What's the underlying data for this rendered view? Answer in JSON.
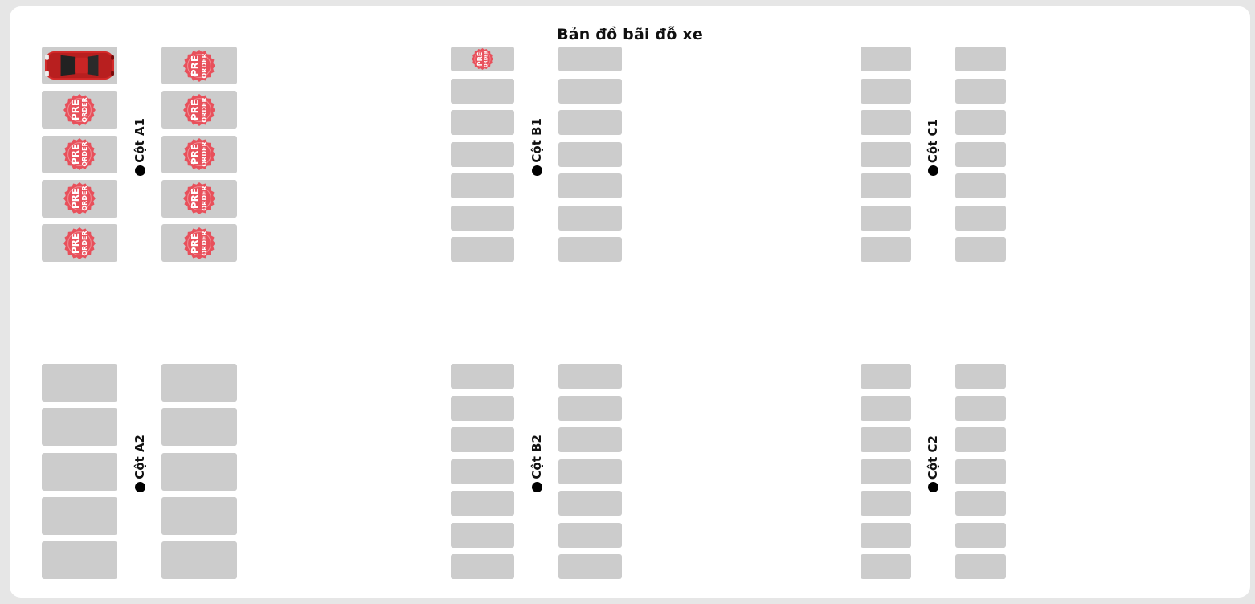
{
  "title": "Bản đồ bãi đỗ xe",
  "colors": {
    "slot": "#cccccc",
    "preorder": "#e8505b",
    "car": "#d42a2a"
  },
  "slot_states": {
    "A1": [
      "car",
      "preorder",
      "preorder",
      "preorder",
      "preorder",
      "preorder",
      "preorder",
      "preorder",
      "preorder",
      "preorder"
    ],
    "A2": [
      "empty",
      "empty",
      "empty",
      "empty",
      "empty",
      "empty",
      "empty",
      "empty",
      "empty",
      "empty"
    ],
    "B1": [
      "preorder",
      "empty",
      "empty",
      "empty",
      "empty",
      "empty",
      "empty",
      "empty",
      "empty",
      "empty",
      "empty",
      "empty",
      "empty",
      "empty"
    ],
    "B2": [
      "empty",
      "empty",
      "empty",
      "empty",
      "empty",
      "empty",
      "empty",
      "empty",
      "empty",
      "empty",
      "empty",
      "empty",
      "empty",
      "empty"
    ],
    "C1": [
      "empty",
      "empty",
      "empty",
      "empty",
      "empty",
      "empty",
      "empty",
      "empty",
      "empty",
      "empty",
      "empty",
      "empty",
      "empty",
      "empty"
    ],
    "C2": [
      "empty",
      "empty",
      "empty",
      "empty",
      "empty",
      "empty",
      "empty",
      "empty",
      "empty",
      "empty",
      "empty",
      "empty",
      "empty",
      "empty"
    ]
  },
  "columns": [
    {
      "id": "A1",
      "label": "Cột A1"
    },
    {
      "id": "A2",
      "label": "Cột A2"
    },
    {
      "id": "B1",
      "label": "Cột B1"
    },
    {
      "id": "B2",
      "label": "Cột B2"
    },
    {
      "id": "C1",
      "label": "Cột C1"
    },
    {
      "id": "C2",
      "label": "Cột C2"
    }
  ],
  "badge_text": {
    "line1": "PRE",
    "line2": "ORDER"
  }
}
